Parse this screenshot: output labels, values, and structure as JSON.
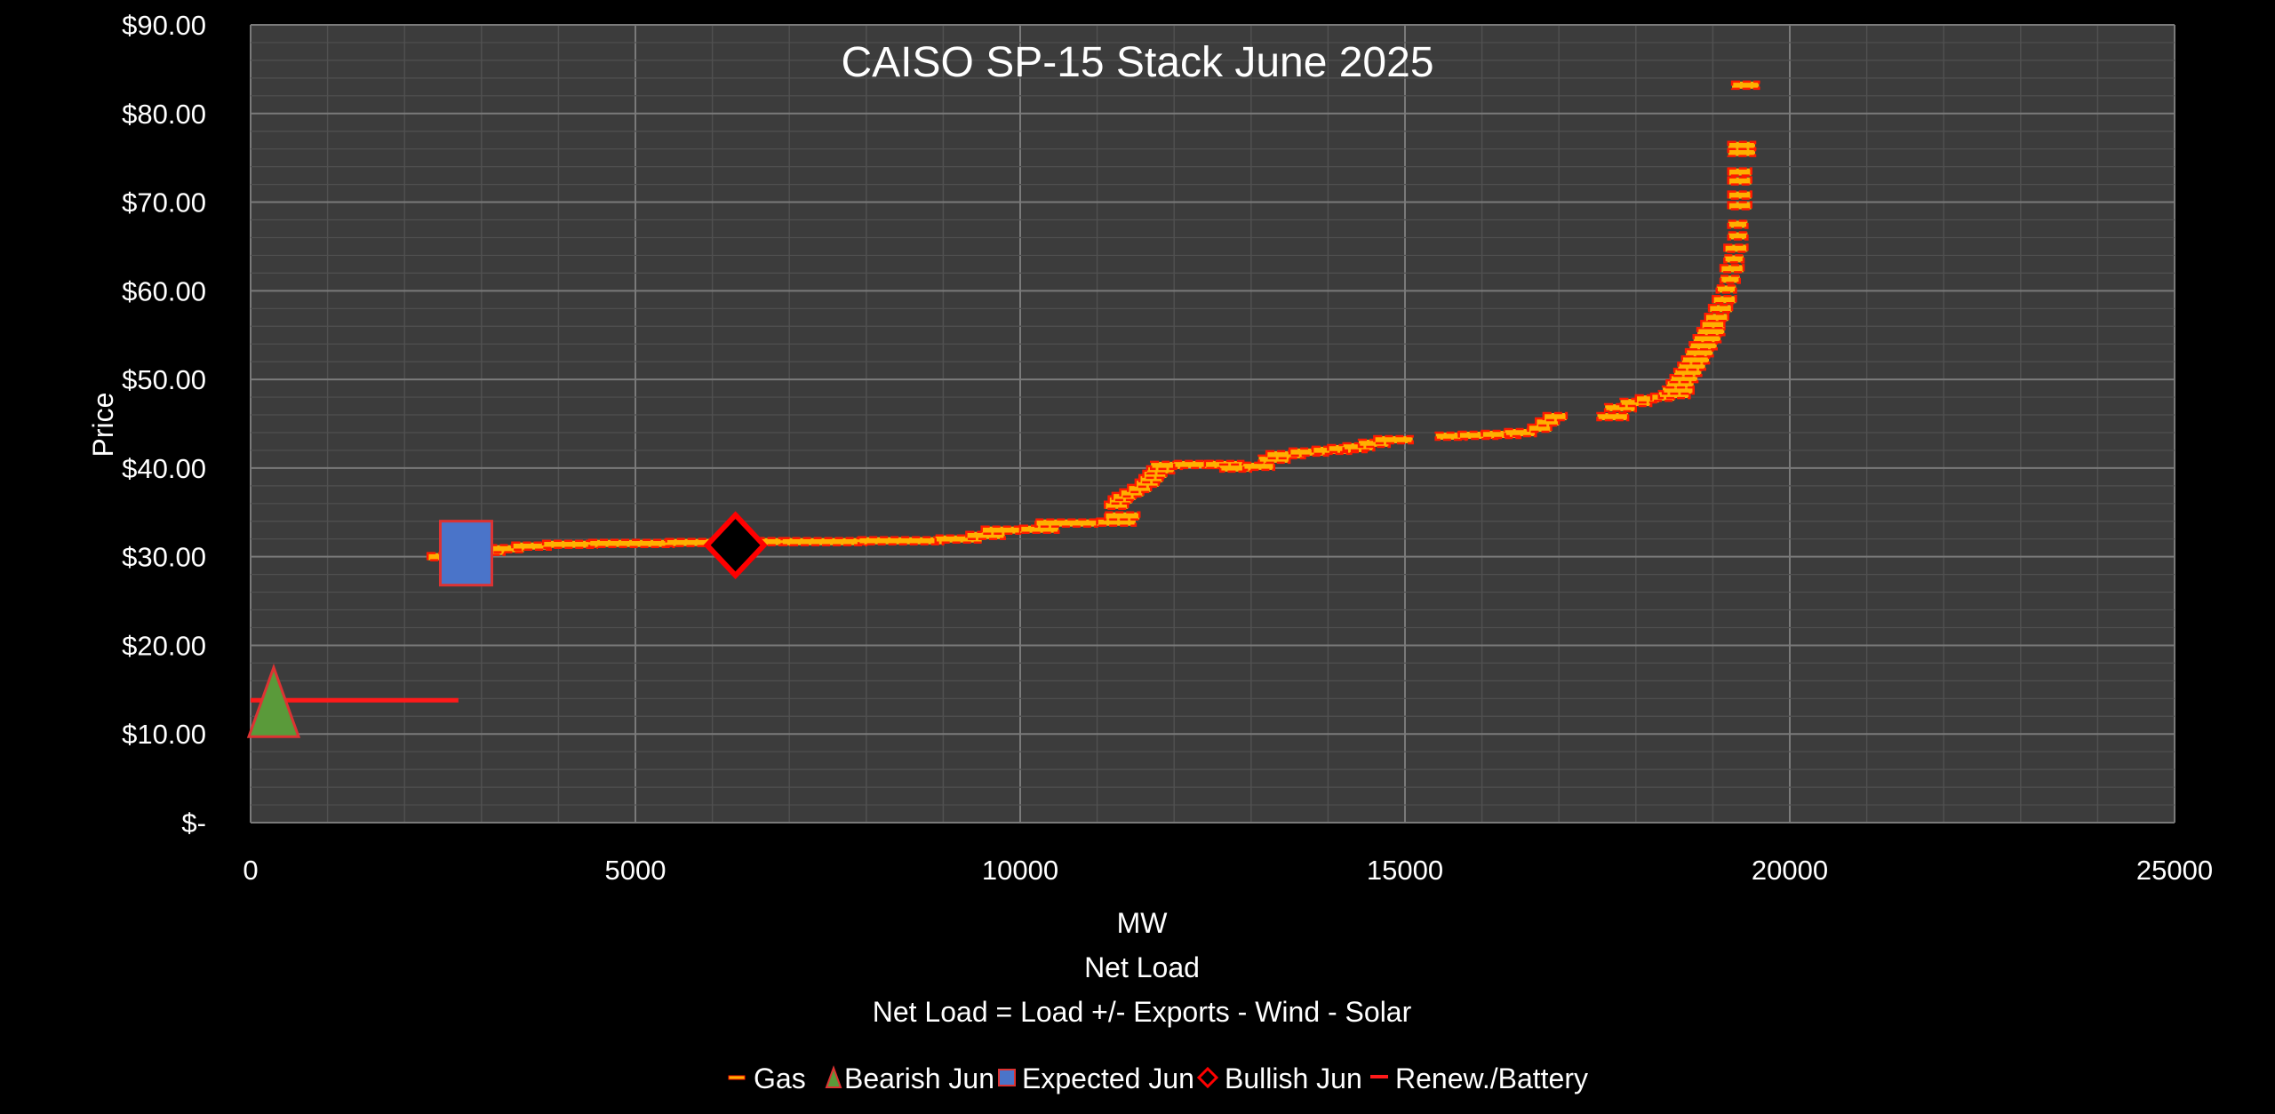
{
  "chart_data": {
    "type": "scatter",
    "title": "CAISO SP-15 Stack June 2025",
    "xlabel": "MW",
    "xlabel_lines": [
      "Net Load",
      "Net Load = Load +/- Exports  - Wind - Solar"
    ],
    "ylabel": "Price",
    "xlim": [
      0,
      25000
    ],
    "ylim": [
      0,
      90
    ],
    "x_ticks": [
      0,
      5000,
      10000,
      15000,
      20000,
      25000
    ],
    "x_tick_labels": [
      "0",
      "5000",
      "10000",
      "15000",
      "20000",
      "25000"
    ],
    "y_ticks": [
      0,
      10,
      20,
      30,
      40,
      50,
      60,
      70,
      80,
      90
    ],
    "y_tick_labels": [
      "$-",
      "$10.00",
      "$20.00",
      "$30.00",
      "$40.00",
      "$50.00",
      "$60.00",
      "$70.00",
      "$80.00",
      "$90.00"
    ],
    "grid": true,
    "legend_position": "bottom",
    "colors": {
      "background": "#000000",
      "plot_area": "#3c3c3c",
      "grid_major": "#7a7a7a",
      "grid_minor": "#505050",
      "gas_fill": "#ffb000",
      "gas_edge": "#ff1a00",
      "bearish": "#5a9a3a",
      "expected": "#4a74c9",
      "bullish": "#000000",
      "bullish_edge": "#ff0000",
      "renew": "#ff1a1a"
    },
    "series": [
      {
        "name": "Gas",
        "marker": "dash",
        "segments": [
          [
            2300,
            2600,
            30.0
          ],
          [
            2600,
            3000,
            30.1
          ],
          [
            2900,
            3300,
            30.6
          ],
          [
            3100,
            3550,
            30.9
          ],
          [
            3400,
            3900,
            31.2
          ],
          [
            3800,
            4500,
            31.4
          ],
          [
            4400,
            5500,
            31.5
          ],
          [
            5400,
            6300,
            31.6
          ],
          [
            6300,
            7000,
            31.7
          ],
          [
            6900,
            8000,
            31.7
          ],
          [
            7900,
            9000,
            31.8
          ],
          [
            8900,
            9500,
            32.0
          ],
          [
            9300,
            9800,
            32.4
          ],
          [
            9500,
            10000,
            33.0
          ],
          [
            10000,
            10500,
            33.1
          ],
          [
            10200,
            11000,
            33.8
          ],
          [
            11000,
            11500,
            33.9
          ],
          [
            11100,
            11550,
            34.6
          ],
          [
            11100,
            11400,
            35.8
          ],
          [
            11150,
            11450,
            36.4
          ],
          [
            11200,
            11500,
            36.8
          ],
          [
            11300,
            11600,
            37.2
          ],
          [
            11400,
            11700,
            37.7
          ],
          [
            11500,
            11800,
            38.3
          ],
          [
            11550,
            11850,
            38.8
          ],
          [
            11600,
            11900,
            39.3
          ],
          [
            11650,
            12000,
            39.8
          ],
          [
            11700,
            12100,
            40.3
          ],
          [
            12000,
            12600,
            40.4
          ],
          [
            12400,
            12900,
            40.4
          ],
          [
            12600,
            13000,
            40.0
          ],
          [
            12900,
            13300,
            40.2
          ],
          [
            13100,
            13500,
            41.0
          ],
          [
            13200,
            13700,
            41.5
          ],
          [
            13500,
            14000,
            41.8
          ],
          [
            13800,
            14300,
            42.0
          ],
          [
            14000,
            14500,
            42.2
          ],
          [
            14200,
            14600,
            42.4
          ],
          [
            14400,
            14800,
            42.8
          ],
          [
            14600,
            15100,
            43.2
          ],
          [
            15400,
            15800,
            43.6
          ],
          [
            15700,
            16200,
            43.7
          ],
          [
            16000,
            16500,
            43.8
          ],
          [
            16300,
            16700,
            44.0
          ],
          [
            16600,
            16900,
            44.5
          ],
          [
            16700,
            17000,
            45.2
          ],
          [
            16800,
            17100,
            45.8
          ],
          [
            17500,
            17900,
            45.8
          ],
          [
            17600,
            18000,
            46.8
          ],
          [
            17800,
            18200,
            47.4
          ],
          [
            18000,
            18300,
            47.8
          ],
          [
            18200,
            18500,
            48.0
          ],
          [
            18300,
            18700,
            48.3
          ],
          [
            18350,
            18750,
            48.8
          ],
          [
            18400,
            18750,
            49.5
          ],
          [
            18450,
            18800,
            50.1
          ],
          [
            18500,
            18850,
            50.8
          ],
          [
            18550,
            18900,
            51.5
          ],
          [
            18600,
            18950,
            52.2
          ],
          [
            18650,
            19000,
            53.0
          ],
          [
            18700,
            19050,
            53.8
          ],
          [
            18750,
            19100,
            54.6
          ],
          [
            18800,
            19150,
            55.4
          ],
          [
            18850,
            19150,
            56.2
          ],
          [
            18900,
            19200,
            57.0
          ],
          [
            18950,
            19250,
            58.0
          ],
          [
            19000,
            19300,
            59.0
          ],
          [
            19050,
            19300,
            60.2
          ],
          [
            19100,
            19350,
            61.3
          ],
          [
            19100,
            19400,
            62.5
          ],
          [
            19150,
            19400,
            63.6
          ],
          [
            19150,
            19450,
            64.8
          ],
          [
            19200,
            19450,
            66.2
          ],
          [
            19200,
            19450,
            67.5
          ],
          [
            19200,
            19500,
            69.6
          ],
          [
            19200,
            19500,
            70.8
          ],
          [
            19200,
            19500,
            72.4
          ],
          [
            19200,
            19500,
            73.4
          ],
          [
            19200,
            19550,
            75.6
          ],
          [
            19200,
            19550,
            76.4
          ],
          [
            19250,
            19600,
            83.2
          ]
        ]
      },
      {
        "name": "Bearish Jun",
        "marker": "triangle",
        "points": [
          {
            "x": 300,
            "y": 13.5
          }
        ]
      },
      {
        "name": "Expected Jun",
        "marker": "square",
        "points": [
          {
            "x": 2800,
            "y": 30.4
          }
        ]
      },
      {
        "name": "Bullish Jun",
        "marker": "diamond",
        "points": [
          {
            "x": 6300,
            "y": 31.3
          }
        ]
      },
      {
        "name": "Renew./Battery",
        "marker": "line",
        "segments": [
          [
            0,
            2700,
            13.8
          ]
        ]
      }
    ]
  }
}
